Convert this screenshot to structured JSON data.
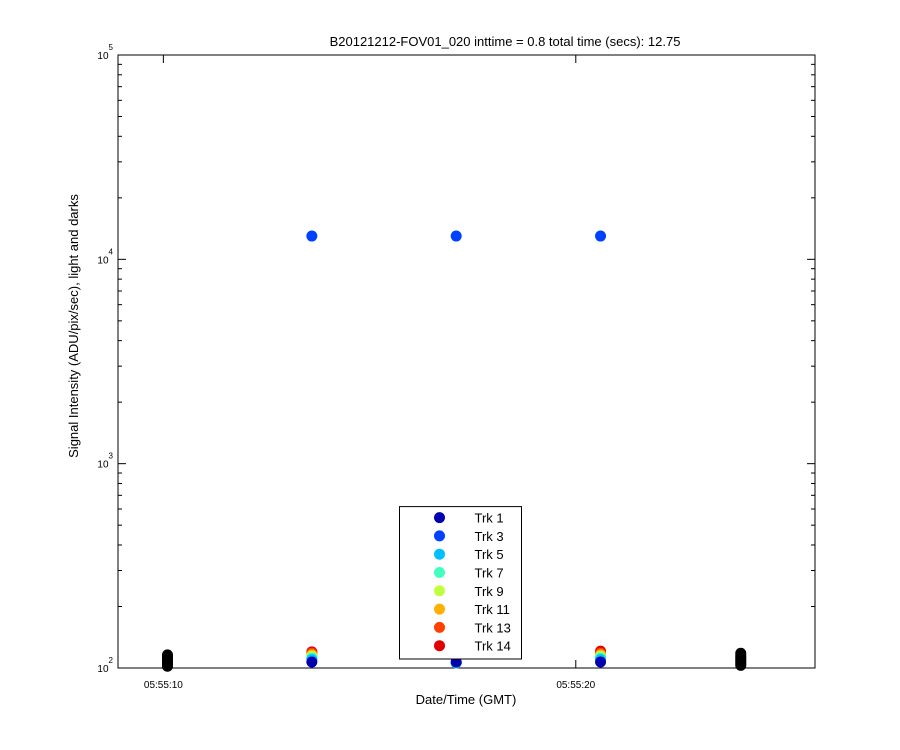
{
  "chart_data": {
    "type": "scatter",
    "title": "B20121212-FOV01_020 inttime = 0.8 total time (secs): 12.75",
    "xlabel": "Date/Time (GMT)",
    "ylabel": "Signal Intensity (ADU/pix/sec), light and darks",
    "xlim": [
      8.9,
      25.8
    ],
    "xticks": [
      {
        "value": 10,
        "label": "05:55:10"
      },
      {
        "value": 20,
        "label": "05:55:20"
      }
    ],
    "ylim": [
      100,
      100000
    ],
    "yscale": "log",
    "yticks": [
      {
        "value": 100,
        "label": "10",
        "exponent": "2"
      },
      {
        "value": 1000,
        "label": "10",
        "exponent": "3"
      },
      {
        "value": 10000,
        "label": "10",
        "exponent": "4"
      },
      {
        "value": 100000,
        "label": "10",
        "exponent": "5"
      }
    ],
    "yminor_ticks": [
      200,
      300,
      400,
      500,
      600,
      700,
      800,
      900,
      2000,
      3000,
      4000,
      5000,
      6000,
      7000,
      8000,
      9000,
      20000,
      30000,
      40000,
      50000,
      60000,
      70000,
      80000,
      90000
    ],
    "grid": false,
    "legend": "lower center",
    "series": [
      {
        "color": "#000000",
        "x": [
          10.1,
          10.1,
          10.1,
          10.1,
          10.1,
          10.1,
          10.1,
          10.1,
          24.0,
          24.0,
          24.0,
          24.0,
          24.0,
          24.0,
          24.0,
          24.0
        ],
        "values": [
          102,
          104,
          106,
          108,
          110,
          112,
          114,
          116,
          103,
          105,
          107,
          109,
          111,
          113,
          115,
          118
        ]
      },
      {
        "name": "Trk 14",
        "color": "#e00000",
        "x": [
          13.6,
          17.1,
          20.6
        ],
        "values": [
          120,
          106,
          121
        ]
      },
      {
        "name": "Trk 13",
        "color": "#ff4000",
        "x": [
          13.6,
          17.1,
          20.6
        ],
        "values": [
          118,
          106,
          118
        ]
      },
      {
        "name": "Trk 11",
        "color": "#ffb000",
        "x": [
          13.6,
          17.1,
          20.6
        ],
        "values": [
          116,
          106,
          116
        ]
      },
      {
        "name": "Trk 9",
        "color": "#c0ff40",
        "x": [
          13.6,
          17.1,
          20.6
        ],
        "values": [
          114,
          106,
          114
        ]
      },
      {
        "name": "Trk 7",
        "color": "#40ffc0",
        "x": [
          13.6,
          17.1,
          20.6
        ],
        "values": [
          112,
          106,
          112
        ]
      },
      {
        "name": "Trk 5",
        "color": "#00c0ff",
        "x": [
          13.6,
          17.1,
          20.6
        ],
        "values": [
          110,
          106,
          110
        ]
      },
      {
        "name": "Trk 3",
        "color": "#0040ff",
        "x": [
          13.6,
          17.1,
          20.6
        ],
        "values": [
          13000,
          13000,
          13000
        ]
      },
      {
        "name": "Trk 1",
        "color": "#0000b0",
        "x": [
          13.6,
          17.1,
          20.6
        ],
        "values": [
          107,
          107,
          107
        ]
      }
    ]
  }
}
